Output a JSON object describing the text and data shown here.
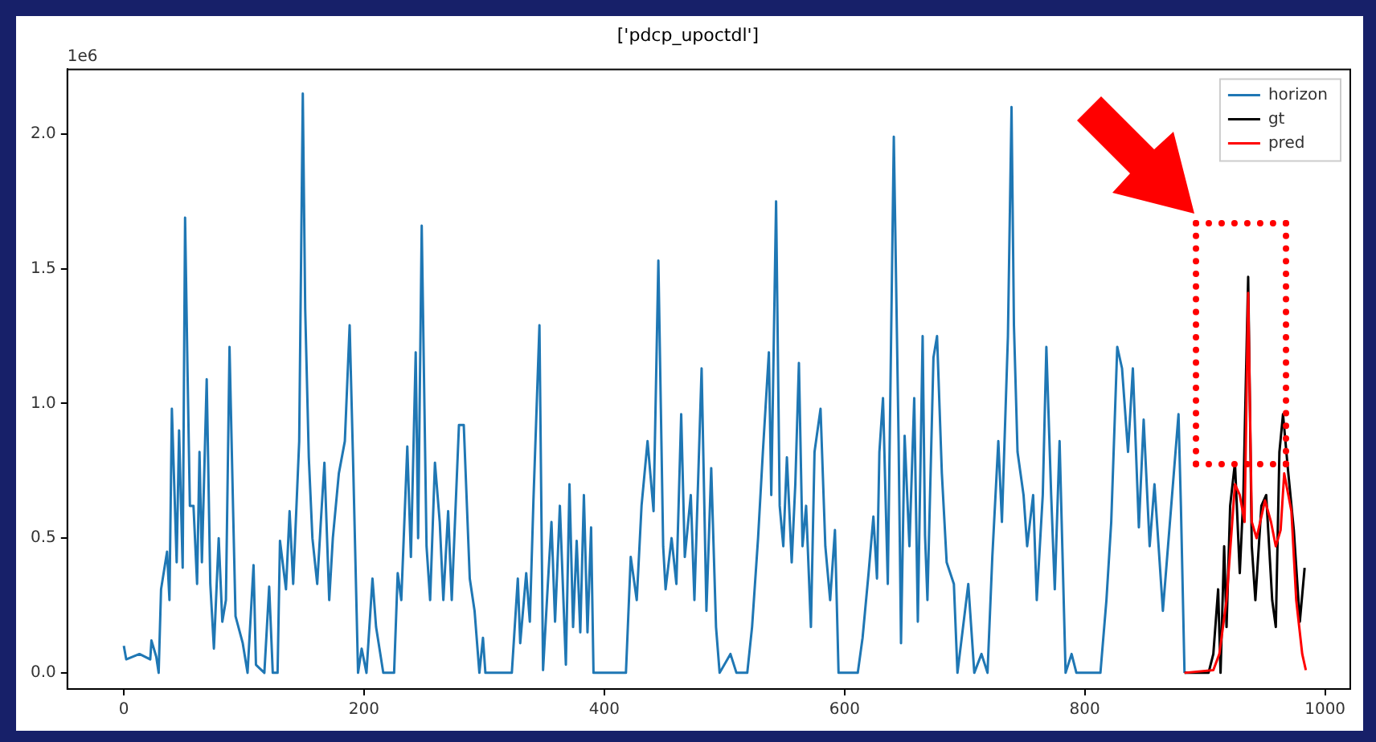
{
  "chart_data": {
    "type": "line",
    "title": "['pdcp_upoctdl']",
    "annotations": [
      "1e6"
    ],
    "xlim": [
      -47,
      1021
    ],
    "ylim": [
      -0.06,
      2.24
    ],
    "xticks": [
      0,
      200,
      400,
      600,
      800,
      1000
    ],
    "yticks": [
      {
        "value": 0,
        "label": "0.0"
      },
      0.5,
      {
        "value": 1,
        "label": "1.0"
      },
      1.5,
      {
        "value": 2,
        "label": "2.0"
      }
    ],
    "legend": "top right",
    "marker": "none",
    "line_style": "solid",
    "series": [
      {
        "name": "horizon",
        "color": "#1f77b4",
        "x": [
          0,
          2,
          13,
          22,
          23,
          27,
          29,
          31,
          36,
          38,
          40,
          44,
          46,
          49,
          51,
          53,
          55,
          58,
          61,
          63,
          65,
          69,
          72,
          75,
          79,
          82,
          85,
          88,
          91,
          93,
          99,
          103,
          108,
          110,
          117,
          121,
          124,
          128,
          130,
          135,
          138,
          141,
          146,
          149,
          151,
          154,
          157,
          161,
          164,
          167,
          171,
          174,
          179,
          184,
          188,
          191,
          195,
          198,
          202,
          207,
          210,
          216,
          225,
          228,
          231,
          236,
          239,
          243,
          245,
          248,
          252,
          255,
          259,
          263,
          266,
          270,
          273,
          279,
          283,
          288,
          292,
          296,
          299,
          301,
          323,
          326,
          328,
          330,
          335,
          338,
          341,
          346,
          349,
          353,
          356,
          359,
          363,
          368,
          371,
          374,
          377,
          380,
          383,
          386,
          389,
          391,
          418,
          422,
          427,
          431,
          436,
          441,
          445,
          449,
          451,
          456,
          460,
          464,
          467,
          472,
          475,
          481,
          485,
          489,
          493,
          496,
          505,
          510,
          519,
          523,
          528,
          532,
          537,
          539,
          543,
          546,
          549,
          552,
          556,
          559,
          562,
          565,
          568,
          572,
          575,
          580,
          584,
          588,
          592,
          595,
          611,
          615,
          620,
          624,
          627,
          629,
          632,
          636,
          641,
          645,
          647,
          650,
          654,
          658,
          661,
          665,
          667,
          669,
          674,
          677,
          681,
          685,
          691,
          694,
          703,
          708,
          714,
          719,
          723,
          728,
          731,
          736,
          739,
          741,
          744,
          749,
          752,
          757,
          760,
          765,
          768,
          772,
          775,
          779,
          784,
          789,
          793,
          813,
          818,
          822,
          827,
          831,
          836,
          840,
          845,
          849,
          854,
          858,
          865,
          878,
          880,
          883
        ],
        "values": [
          0.1,
          0.05,
          0.07,
          0.05,
          0.12,
          0.06,
          0,
          0.31,
          0.45,
          0.27,
          0.98,
          0.41,
          0.9,
          0.39,
          1.69,
          1.13,
          0.62,
          0.62,
          0.33,
          0.82,
          0.41,
          1.09,
          0.33,
          0.09,
          0.5,
          0.19,
          0.27,
          1.21,
          0.6,
          0.21,
          0.11,
          0,
          0.4,
          0.03,
          0,
          0.32,
          0,
          0,
          0.49,
          0.31,
          0.6,
          0.33,
          0.86,
          2.15,
          1.35,
          0.8,
          0.5,
          0.33,
          0.56,
          0.78,
          0.27,
          0.5,
          0.74,
          0.86,
          1.29,
          0.76,
          0,
          0.09,
          0,
          0.35,
          0.17,
          0,
          0,
          0.37,
          0.27,
          0.84,
          0.43,
          1.19,
          0.5,
          1.66,
          0.47,
          0.27,
          0.78,
          0.56,
          0.27,
          0.6,
          0.27,
          0.92,
          0.92,
          0.35,
          0.23,
          0,
          0.13,
          0,
          0,
          0.21,
          0.35,
          0.11,
          0.37,
          0.19,
          0.64,
          1.29,
          0.01,
          0.33,
          0.56,
          0.19,
          0.62,
          0.03,
          0.7,
          0.17,
          0.49,
          0.15,
          0.66,
          0.15,
          0.54,
          0,
          0,
          0.43,
          0.27,
          0.62,
          0.86,
          0.6,
          1.53,
          0.47,
          0.31,
          0.5,
          0.33,
          0.96,
          0.43,
          0.66,
          0.27,
          1.13,
          0.23,
          0.76,
          0.17,
          0,
          0.07,
          0,
          0,
          0.17,
          0.5,
          0.82,
          1.19,
          0.66,
          1.75,
          0.62,
          0.47,
          0.8,
          0.41,
          0.7,
          1.15,
          0.47,
          0.62,
          0.17,
          0.82,
          0.98,
          0.47,
          0.27,
          0.53,
          0,
          0,
          0.13,
          0.37,
          0.58,
          0.35,
          0.82,
          1.02,
          0.33,
          1.99,
          0.86,
          0.11,
          0.88,
          0.47,
          1.02,
          0.19,
          1.25,
          0.51,
          0.27,
          1.17,
          1.25,
          0.74,
          0.41,
          0.33,
          0,
          0.33,
          0,
          0.07,
          0,
          0.43,
          0.86,
          0.56,
          1.25,
          2.1,
          1.29,
          0.82,
          0.66,
          0.47,
          0.66,
          0.27,
          0.66,
          1.21,
          0.66,
          0.31,
          0.86,
          0,
          0.07,
          0,
          0,
          0.27,
          0.56,
          1.21,
          1.13,
          0.82,
          1.13,
          0.54,
          0.94,
          0.47,
          0.7,
          0.23,
          0.96,
          0.62,
          0
        ]
      },
      {
        "name": "gt",
        "color": "#000000",
        "x": [
          883,
          903,
          907,
          911,
          913,
          916,
          918,
          921,
          925,
          929,
          932,
          936,
          939,
          942,
          947,
          951,
          956,
          959,
          962,
          965,
          969,
          974,
          979,
          983
        ],
        "values": [
          0,
          0,
          0.07,
          0.31,
          0,
          0.47,
          0.17,
          0.62,
          0.78,
          0.37,
          0.66,
          1.47,
          0.47,
          0.27,
          0.62,
          0.66,
          0.27,
          0.17,
          0.82,
          0.96,
          0.76,
          0.53,
          0.19,
          0.39
        ]
      },
      {
        "name": "pred",
        "color": "#ff0000",
        "x": [
          883,
          907,
          912,
          918,
          925,
          929,
          933,
          936,
          939,
          943,
          950,
          955,
          959,
          963,
          966,
          972,
          976,
          981,
          984
        ],
        "values": [
          0,
          0.01,
          0.07,
          0.27,
          0.7,
          0.66,
          0.56,
          1.41,
          0.56,
          0.5,
          0.64,
          0.56,
          0.47,
          0.53,
          0.74,
          0.6,
          0.27,
          0.07,
          0.01
        ]
      }
    ]
  }
}
